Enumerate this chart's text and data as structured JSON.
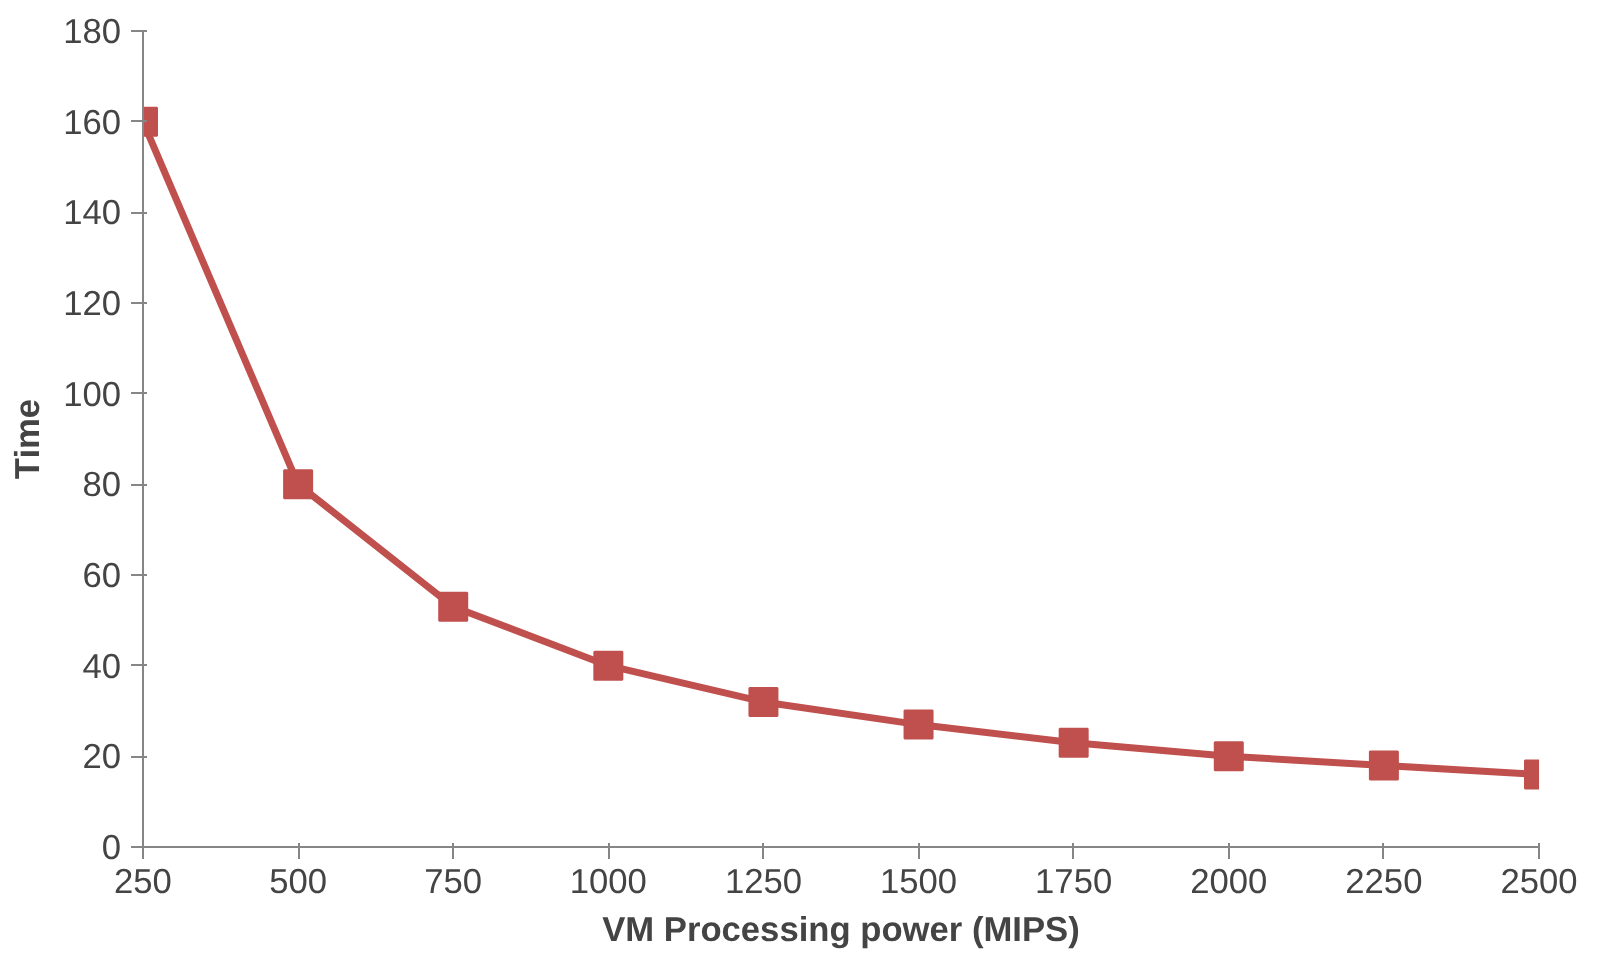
{
  "chart_data": {
    "type": "line",
    "xlabel": "VM Processing power (MIPS)",
    "ylabel": "Time",
    "x": [
      250,
      500,
      750,
      1000,
      1250,
      1500,
      1750,
      2000,
      2250,
      2500
    ],
    "series": [
      {
        "color": "#c0504d",
        "values": [
          160,
          80,
          53,
          40,
          32,
          27,
          23,
          20,
          18,
          16
        ]
      }
    ],
    "xlim": [
      250,
      2500
    ],
    "xticks": [
      250,
      500,
      750,
      1000,
      1250,
      1500,
      1750,
      2000,
      2250,
      2500
    ],
    "ylim": [
      0,
      180
    ],
    "yticks": [
      0,
      20,
      40,
      60,
      80,
      100,
      120,
      140,
      160,
      180
    ],
    "grid": false,
    "marker": "square",
    "line_style": "solid"
  }
}
